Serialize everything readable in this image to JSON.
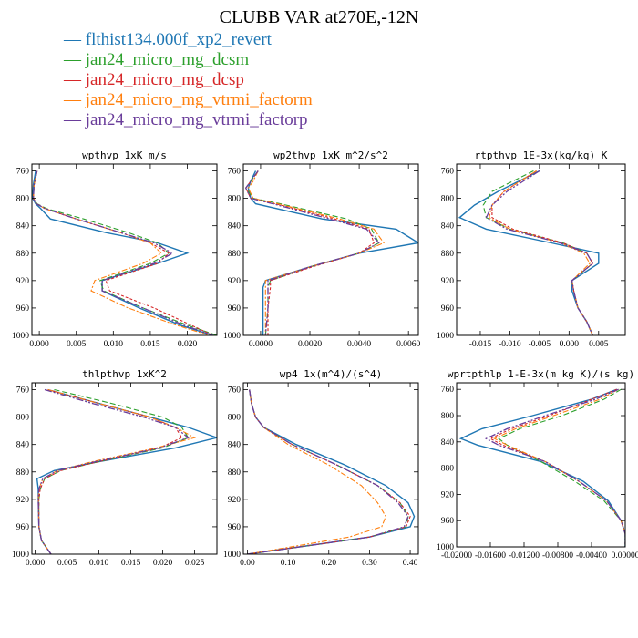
{
  "figure_title": "CLUBB VAR at270E,-12N",
  "legend": [
    {
      "label": "flthist134.000f_xp2_revert",
      "color": "#1f77b4"
    },
    {
      "label": "jan24_micro_mg_dcsm",
      "color": "#2ca02c"
    },
    {
      "label": "jan24_micro_mg_dcsp",
      "color": "#d62728"
    },
    {
      "label": "jan24_micro_mg_vtrmi_factorm",
      "color": "#ff7f0e"
    },
    {
      "label": "jan24_micro_mg_vtrmi_factorp",
      "color": "#6a3d9a"
    }
  ],
  "chart_data": [
    {
      "type": "line",
      "title": "wpthvp  1xK m/s",
      "xlim": [
        -0.001,
        0.024
      ],
      "ylim": [
        1000,
        750
      ],
      "xticks": [
        0.0,
        0.005,
        0.01,
        0.015,
        0.02
      ],
      "xtick_labels": [
        "0.000",
        "0.005",
        "0.010",
        "0.015",
        "0.020"
      ],
      "yticks": [
        760,
        800,
        840,
        880,
        920,
        960,
        1000
      ],
      "y": [
        760,
        780,
        800,
        808,
        815,
        830,
        850,
        865,
        880,
        895,
        920,
        935,
        960,
        985,
        1000
      ],
      "series": [
        {
          "x": [
            -0.0005,
            -0.0008,
            -0.0009,
            -0.0005,
            0.0002,
            0.0015,
            0.009,
            0.016,
            0.02,
            0.016,
            0.0085,
            0.0085,
            0.0135,
            0.019,
            0.0235
          ]
        },
        {
          "x": [
            -0.0003,
            -0.0007,
            -0.0008,
            -0.0003,
            0.001,
            0.006,
            0.012,
            0.016,
            0.0175,
            0.015,
            0.0082,
            0.0087,
            0.014,
            0.02,
            0.024
          ]
        },
        {
          "x": [
            -0.0003,
            -0.0007,
            -0.0008,
            -0.0004,
            0.0008,
            0.005,
            0.011,
            0.015,
            0.0175,
            0.016,
            0.009,
            0.0095,
            0.0155,
            0.0205,
            0.0235
          ]
        },
        {
          "x": [
            -0.0003,
            -0.0007,
            -0.0008,
            -0.0004,
            0.0008,
            0.005,
            0.011,
            0.015,
            0.0165,
            0.014,
            0.0075,
            0.007,
            0.012,
            0.0185,
            0.023
          ]
        },
        {
          "x": [
            -0.0003,
            -0.0007,
            -0.0008,
            -0.0004,
            0.0008,
            0.005,
            0.011,
            0.0155,
            0.018,
            0.0155,
            0.0085,
            0.0085,
            0.014,
            0.0195,
            0.0235
          ]
        }
      ]
    },
    {
      "type": "line",
      "title": "wp2thvp  1xK m^2/s^2",
      "xlim": [
        -0.0007,
        0.0064
      ],
      "ylim": [
        1000,
        750
      ],
      "xticks": [
        0.0,
        0.002,
        0.004,
        0.006
      ],
      "xtick_labels": [
        "0.0000",
        "0.0020",
        "0.0040",
        "0.0060"
      ],
      "yticks": [
        760,
        800,
        840,
        880,
        920,
        960,
        1000
      ],
      "y": [
        760,
        775,
        785,
        800,
        808,
        830,
        845,
        865,
        880,
        900,
        920,
        930,
        960,
        1000
      ],
      "series": [
        {
          "x": [
            -0.0002,
            -0.0004,
            -0.0005,
            -0.0004,
            -0.0002,
            0.0025,
            0.0055,
            0.0064,
            0.004,
            0.002,
            0.0002,
            0.0001,
            0.0001,
            0.0001
          ]
        },
        {
          "x": [
            -0.0001,
            -0.0004,
            -0.0006,
            -0.0003,
            0.0008,
            0.0035,
            0.0045,
            0.0048,
            0.004,
            0.002,
            0.0004,
            0.0003,
            0.0003,
            0.0002
          ]
        },
        {
          "x": [
            -0.0001,
            -0.0004,
            -0.0006,
            -0.0004,
            0.0006,
            0.003,
            0.0044,
            0.0046,
            0.004,
            0.0021,
            0.0004,
            0.0004,
            0.0003,
            0.0003
          ]
        },
        {
          "x": [
            -0.0001,
            -0.0003,
            -0.0005,
            -0.0003,
            0.0007,
            0.0032,
            0.0046,
            0.005,
            0.004,
            0.002,
            0.0002,
            0.0002,
            0.0002,
            0.0002
          ]
        },
        {
          "x": [
            -0.0001,
            -0.0004,
            -0.0006,
            -0.0004,
            0.0005,
            0.0028,
            0.0043,
            0.0048,
            0.004,
            0.002,
            0.0003,
            0.0003,
            0.0003,
            0.0002
          ]
        }
      ]
    },
    {
      "type": "line",
      "title": "rtpthvp  1E-3x(kg/kg) K",
      "xlim": [
        -0.019,
        0.0095
      ],
      "ylim": [
        1000,
        750
      ],
      "xticks": [
        -0.015,
        -0.01,
        -0.005,
        0.0,
        0.005
      ],
      "xtick_labels": [
        "-0.015",
        "-0.010",
        "-0.005",
        "0.000",
        "0.005"
      ],
      "yticks": [
        760,
        800,
        840,
        880,
        920,
        960,
        1000
      ],
      "y": [
        760,
        790,
        810,
        828,
        845,
        865,
        880,
        895,
        920,
        935,
        960,
        980,
        1000
      ],
      "series": [
        {
          "x": [
            -0.005,
            -0.012,
            -0.016,
            -0.0185,
            -0.014,
            -0.003,
            0.005,
            0.005,
            0.0005,
            0.0005,
            0.0015,
            0.003,
            0.004
          ]
        },
        {
          "x": [
            -0.006,
            -0.013,
            -0.0145,
            -0.014,
            -0.01,
            -0.001,
            0.003,
            0.004,
            0.0005,
            0.0008,
            0.0015,
            0.003,
            0.004
          ]
        },
        {
          "x": [
            -0.0055,
            -0.011,
            -0.013,
            -0.013,
            -0.0095,
            -0.001,
            0.003,
            0.004,
            0.0005,
            0.0008,
            0.0015,
            0.003,
            0.004
          ]
        },
        {
          "x": [
            -0.0055,
            -0.011,
            -0.013,
            -0.0135,
            -0.01,
            -0.0015,
            0.0025,
            0.0035,
            0.0005,
            0.0008,
            0.0015,
            0.003,
            0.004
          ]
        },
        {
          "x": [
            -0.005,
            -0.0105,
            -0.013,
            -0.014,
            -0.0105,
            -0.0015,
            0.003,
            0.004,
            0.0005,
            0.0008,
            0.0015,
            0.003,
            0.004
          ]
        }
      ]
    },
    {
      "type": "line",
      "title": "thlpthvp  1xK^2",
      "xlim": [
        -0.0005,
        0.0285
      ],
      "ylim": [
        1000,
        750
      ],
      "xticks": [
        0.0,
        0.005,
        0.01,
        0.015,
        0.02,
        0.025
      ],
      "xtick_labels": [
        "0.000",
        "0.005",
        "0.010",
        "0.015",
        "0.020",
        "0.025"
      ],
      "yticks": [
        760,
        800,
        840,
        880,
        920,
        960,
        1000
      ],
      "y": [
        760,
        780,
        800,
        815,
        830,
        845,
        865,
        878,
        890,
        905,
        920,
        960,
        980,
        1000
      ],
      "series": [
        {
          "x": [
            0.002,
            0.01,
            0.018,
            0.024,
            0.0285,
            0.022,
            0.01,
            0.003,
            0.0003,
            0.0005,
            0.0005,
            0.0006,
            0.001,
            0.0025
          ]
        },
        {
          "x": [
            0.003,
            0.012,
            0.02,
            0.023,
            0.024,
            0.02,
            0.01,
            0.004,
            0.0015,
            0.0008,
            0.0006,
            0.0006,
            0.001,
            0.0025
          ]
        },
        {
          "x": [
            0.002,
            0.01,
            0.018,
            0.022,
            0.023,
            0.0195,
            0.01,
            0.004,
            0.0015,
            0.0008,
            0.0006,
            0.0006,
            0.001,
            0.0025
          ]
        },
        {
          "x": [
            0.002,
            0.01,
            0.018,
            0.022,
            0.025,
            0.019,
            0.009,
            0.0035,
            0.0012,
            0.0006,
            0.0005,
            0.0006,
            0.001,
            0.0025
          ]
        },
        {
          "x": [
            0.0015,
            0.009,
            0.017,
            0.022,
            0.024,
            0.0195,
            0.0095,
            0.0035,
            0.0012,
            0.0006,
            0.0005,
            0.0006,
            0.001,
            0.0025
          ]
        }
      ]
    },
    {
      "type": "line",
      "title": "wp4  1x(m^4)/(s^4)",
      "xlim": [
        -0.01,
        0.42
      ],
      "ylim": [
        1000,
        750
      ],
      "xticks": [
        0.0,
        0.1,
        0.2,
        0.3,
        0.4
      ],
      "xtick_labels": [
        "0.00",
        "0.10",
        "0.20",
        "0.30",
        "0.40"
      ],
      "yticks": [
        760,
        800,
        840,
        880,
        920,
        960,
        1000
      ],
      "y": [
        760,
        780,
        800,
        815,
        840,
        870,
        900,
        925,
        945,
        960,
        975,
        990,
        1000
      ],
      "series": [
        {
          "x": [
            0.005,
            0.01,
            0.02,
            0.04,
            0.12,
            0.24,
            0.34,
            0.395,
            0.41,
            0.4,
            0.3,
            0.12,
            0.0
          ]
        },
        {
          "x": [
            0.005,
            0.01,
            0.02,
            0.04,
            0.11,
            0.22,
            0.32,
            0.375,
            0.395,
            0.39,
            0.3,
            0.12,
            0.0
          ]
        },
        {
          "x": [
            0.005,
            0.01,
            0.02,
            0.04,
            0.11,
            0.22,
            0.32,
            0.375,
            0.4,
            0.39,
            0.3,
            0.12,
            0.0
          ]
        },
        {
          "x": [
            0.005,
            0.01,
            0.02,
            0.04,
            0.1,
            0.2,
            0.28,
            0.32,
            0.34,
            0.33,
            0.25,
            0.1,
            0.0
          ]
        },
        {
          "x": [
            0.005,
            0.01,
            0.02,
            0.04,
            0.11,
            0.22,
            0.32,
            0.37,
            0.395,
            0.385,
            0.3,
            0.12,
            0.0
          ]
        }
      ]
    },
    {
      "type": "line",
      "title": "wprtpthlp  1-E-3x(m kg K)/(s kg)",
      "xlim": [
        -0.02,
        0.0
      ],
      "ylim": [
        1000,
        750
      ],
      "xticks": [
        -0.02,
        -0.016,
        -0.012,
        -0.008,
        -0.004,
        0.0
      ],
      "xtick_labels": [
        "-0.02000",
        "-0.01600",
        "-0.01200",
        "-0.00800",
        "-0.00400",
        "0.00000"
      ],
      "yticks": [
        760,
        800,
        840,
        880,
        920,
        960,
        1000
      ],
      "y": [
        760,
        775,
        800,
        820,
        835,
        845,
        870,
        900,
        930,
        960,
        980,
        1000
      ],
      "series": [
        {
          "x": [
            -0.001,
            -0.004,
            -0.011,
            -0.017,
            -0.0195,
            -0.0175,
            -0.01,
            -0.005,
            -0.002,
            -0.0005,
            0.0,
            0.0
          ]
        },
        {
          "x": [
            -0.0005,
            -0.0025,
            -0.0075,
            -0.0125,
            -0.015,
            -0.014,
            -0.01,
            -0.006,
            -0.0025,
            -0.0005,
            0.0,
            0.0
          ]
        },
        {
          "x": [
            -0.001,
            -0.004,
            -0.009,
            -0.0135,
            -0.016,
            -0.0145,
            -0.0095,
            -0.0055,
            -0.0022,
            -0.0005,
            0.0,
            0.0
          ]
        },
        {
          "x": [
            -0.0008,
            -0.003,
            -0.0085,
            -0.013,
            -0.0155,
            -0.014,
            -0.0095,
            -0.0055,
            -0.0022,
            -0.0005,
            0.0,
            0.0
          ]
        },
        {
          "x": [
            -0.0008,
            -0.0035,
            -0.0095,
            -0.014,
            -0.0165,
            -0.015,
            -0.0095,
            -0.0055,
            -0.0022,
            -0.0005,
            0.0,
            0.0
          ]
        }
      ]
    }
  ]
}
